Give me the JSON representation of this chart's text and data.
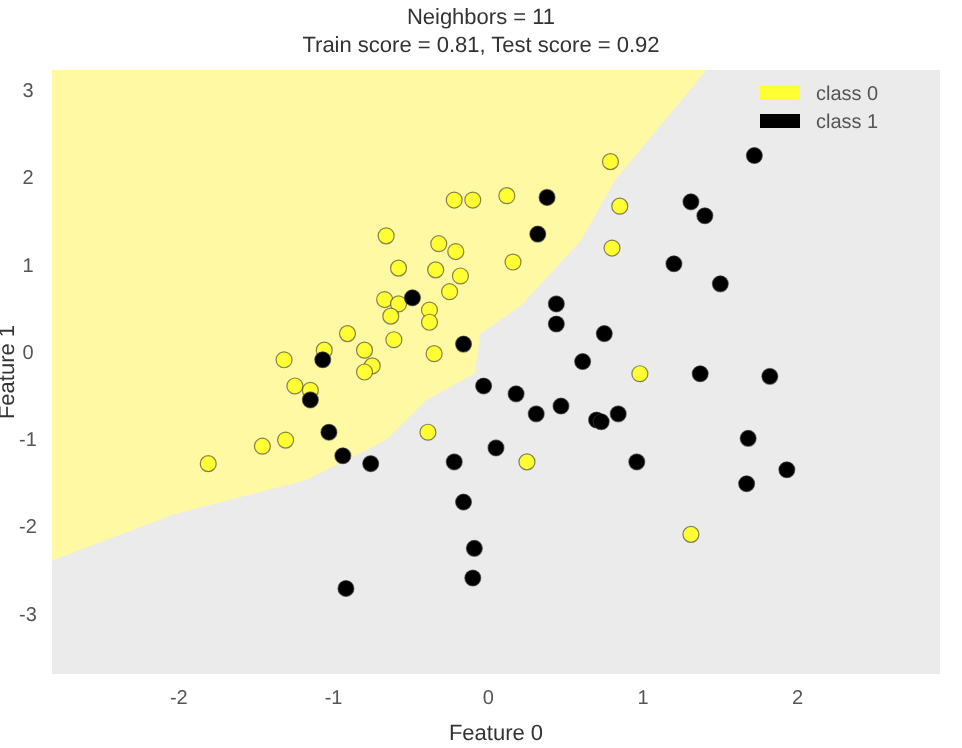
{
  "chart_data": {
    "type": "scatter",
    "title": "Neighbors = 11",
    "subtitle": "Train score = 0.81, Test score = 0.92",
    "xlabel": "Feature 0",
    "ylabel": "Feature 1",
    "xlim": [
      -2.82,
      2.92
    ],
    "ylim": [
      -3.69,
      3.23
    ],
    "xticks": [
      -2,
      -1,
      0,
      1,
      2
    ],
    "yticks": [
      -3,
      -2,
      -1,
      0,
      1,
      2,
      3
    ],
    "grid": false,
    "legend": "top right",
    "marker": "circle",
    "series": [
      {
        "name": "class 0",
        "color": "#ffff33",
        "x": [
          -1.81,
          -1.46,
          -1.31,
          -0.39,
          -1.25,
          -1.15,
          -0.22,
          -0.1,
          0.12,
          -0.66,
          -0.32,
          -0.21,
          -0.58,
          -0.34,
          -0.18,
          0.16,
          -0.25,
          -0.67,
          -0.58,
          -0.63,
          -0.38,
          -0.38,
          -0.91,
          -0.61,
          -0.8,
          -0.35,
          -1.06,
          -0.75,
          -0.8,
          -1.32,
          0.79,
          0.85,
          0.8,
          0.98,
          0.25,
          1.31
        ],
        "values": [
          -1.28,
          -1.08,
          -1.01,
          -0.92,
          -0.39,
          -0.44,
          1.74,
          1.74,
          1.79,
          1.33,
          1.24,
          1.15,
          0.96,
          0.94,
          0.87,
          1.03,
          0.69,
          0.6,
          0.55,
          0.41,
          0.48,
          0.34,
          0.21,
          0.14,
          0.02,
          -0.02,
          0.02,
          -0.16,
          -0.23,
          -0.09,
          2.18,
          1.67,
          1.19,
          -0.25,
          -1.26,
          -2.09
        ]
      },
      {
        "name": "class 1",
        "color": "#000000",
        "x": [
          -0.49,
          -0.16,
          -0.03,
          0.18,
          -1.07,
          -1.15,
          -1.03,
          -0.94,
          -0.76,
          -0.22,
          0.05,
          -0.16,
          -0.09,
          -0.1,
          -0.92,
          1.72,
          0.38,
          0.32,
          1.31,
          1.4,
          1.2,
          1.5,
          0.44,
          0.44,
          0.75,
          0.61,
          1.37,
          1.82,
          0.31,
          0.47,
          0.7,
          0.73,
          0.84,
          0.96,
          1.68,
          1.93,
          1.67
        ],
        "values": [
          0.62,
          0.09,
          -0.39,
          -0.48,
          -0.09,
          -0.55,
          -0.92,
          -1.19,
          -1.28,
          -1.26,
          -1.1,
          -1.72,
          -2.25,
          -2.59,
          -2.71,
          2.25,
          1.77,
          1.35,
          1.72,
          1.56,
          1.01,
          0.78,
          0.55,
          0.32,
          0.21,
          -0.11,
          -0.25,
          -0.28,
          -0.71,
          -0.62,
          -0.78,
          -0.8,
          -0.71,
          -1.26,
          -0.99,
          -1.35,
          -1.51
        ]
      }
    ]
  }
}
